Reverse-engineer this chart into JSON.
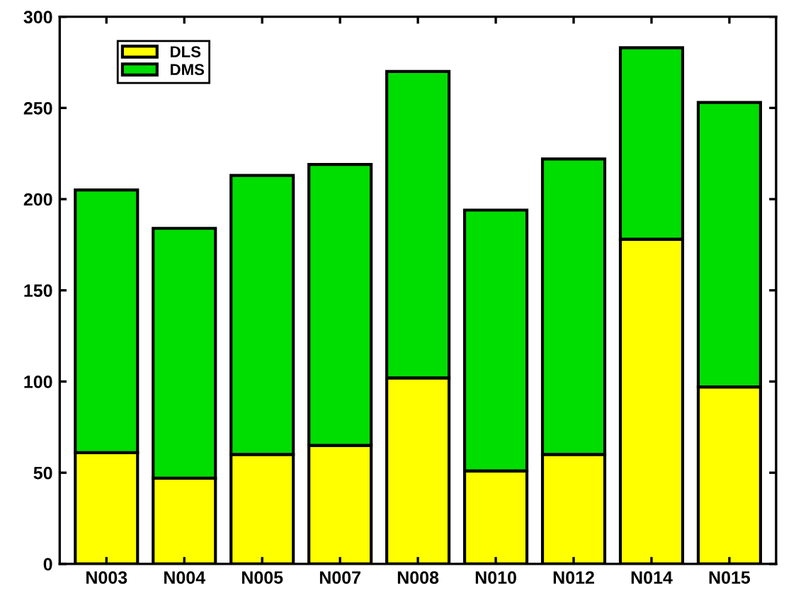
{
  "chart_data": {
    "type": "bar",
    "stacked": true,
    "categories": [
      "N003",
      "N004",
      "N005",
      "N007",
      "N008",
      "N010",
      "N012",
      "N014",
      "N015"
    ],
    "series": [
      {
        "name": "DLS",
        "color": "#ffff00",
        "values": [
          61,
          47,
          60,
          65,
          102,
          51,
          60,
          178,
          97
        ]
      },
      {
        "name": "DMS",
        "color": "#00dd00",
        "values": [
          144,
          137,
          153,
          154,
          168,
          143,
          162,
          105,
          156
        ]
      }
    ],
    "ylim": [
      0,
      300
    ],
    "yticks": [
      0,
      50,
      100,
      150,
      200,
      250,
      300
    ],
    "legend": "top left",
    "grid": false
  }
}
